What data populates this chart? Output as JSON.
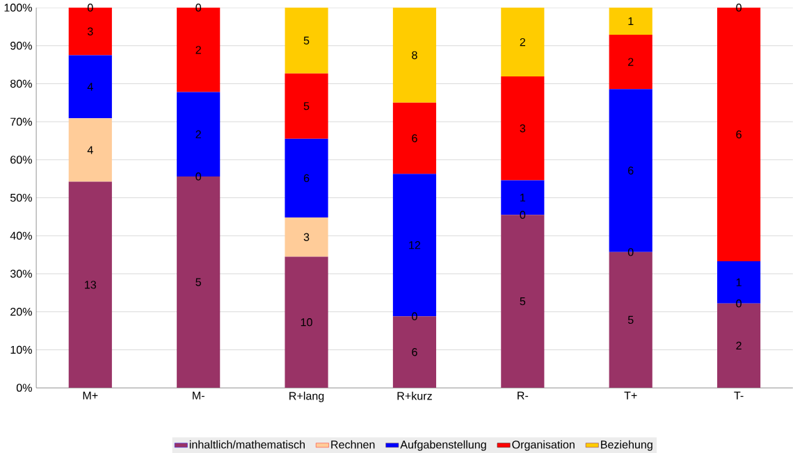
{
  "chart_data": {
    "type": "bar",
    "stacked": true,
    "categories": [
      "M+",
      "M-",
      "R+lang",
      "R+kurz",
      "R-",
      "T+",
      "T-"
    ],
    "series": [
      {
        "name": "inhaltlich/mathematisch",
        "color": "#993366",
        "values": [
          54.2,
          55.6,
          34.5,
          18.8,
          45.5,
          35.7,
          22.2
        ]
      },
      {
        "name": "Rechnen",
        "color": "#ffcc99",
        "values": [
          16.7,
          0,
          10.3,
          0,
          0,
          0,
          0
        ]
      },
      {
        "name": "Aufgabenstellung",
        "color": "#0000ff",
        "values": [
          16.6,
          22.2,
          20.7,
          37.5,
          9.1,
          42.9,
          11.1
        ]
      },
      {
        "name": "Organisation",
        "color": "#ff0000",
        "values": [
          12.5,
          22.2,
          17.2,
          18.7,
          27.3,
          14.3,
          66.7
        ]
      },
      {
        "name": "Beziehung",
        "color": "#ffcc00",
        "values": [
          0,
          0,
          17.3,
          25,
          18.1,
          7.1,
          0
        ]
      }
    ],
    "annotations": [
      "13",
      "4",
      "4",
      "3",
      "0",
      "5",
      "0",
      "2",
      "2",
      "0",
      "10",
      "3",
      "6",
      "5",
      "5",
      "6",
      "0",
      "12",
      "6",
      "8",
      "5",
      "0",
      "1",
      "3",
      "2",
      "5",
      "0",
      "6",
      "2",
      "1",
      "2",
      "0",
      "1",
      "6",
      "0"
    ],
    "ylim": [
      0,
      100
    ],
    "yticks": [
      {
        "value": 0,
        "label": "0%"
      },
      {
        "value": 10,
        "label": "10%"
      },
      {
        "value": 20,
        "label": "20%"
      },
      {
        "value": 30,
        "label": "30%"
      },
      {
        "value": 40,
        "label": "40%"
      },
      {
        "value": 50,
        "label": "50%"
      },
      {
        "value": 60,
        "label": "60%"
      },
      {
        "value": 70,
        "label": "70%"
      },
      {
        "value": 80,
        "label": "80%"
      },
      {
        "value": 90,
        "label": "90%"
      },
      {
        "value": 100,
        "label": "100%"
      }
    ],
    "grid": "y",
    "legend": "bottom"
  }
}
